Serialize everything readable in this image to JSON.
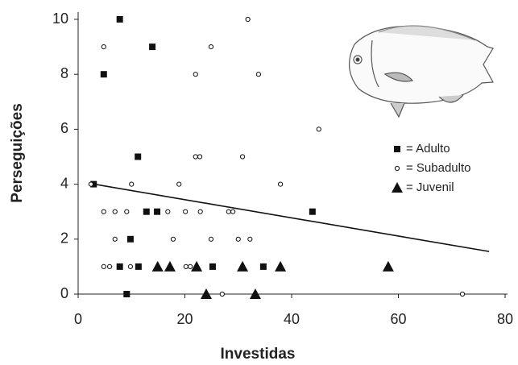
{
  "chart_data": {
    "type": "scatter",
    "xlabel": "Investidas",
    "ylabel": "Perseguições",
    "xlim": [
      0,
      80
    ],
    "xticks": [
      0,
      20,
      40,
      60,
      80
    ],
    "ylim": [
      0,
      10
    ],
    "yticks": [
      0,
      2,
      4,
      6,
      8,
      10
    ],
    "series": [
      {
        "name": "= Adulto",
        "marker": "square",
        "color": "#111111",
        "x": [
          7.8,
          13.9,
          4.8,
          11.2,
          2.9,
          12.8,
          14.8,
          43.9,
          9.8,
          7.8,
          11.3,
          25.2,
          34.7,
          9.1
        ],
        "values": [
          10,
          9,
          8,
          5,
          4,
          3,
          3,
          3,
          2,
          1,
          1,
          1,
          1,
          0
        ]
      },
      {
        "name": "= Subadulto",
        "marker": "circle",
        "color": "#111111",
        "x": [
          4.8,
          24.9,
          31.8,
          22,
          33.8,
          45.1,
          22,
          22.8,
          30.8,
          2.4,
          10,
          18.9,
          37.9,
          4.8,
          6.9,
          9.1,
          16.8,
          20.1,
          22.9,
          28.2,
          29,
          6.9,
          17.8,
          24.9,
          30,
          32.2,
          4.8,
          5.9,
          9.8,
          20.2,
          21,
          27,
          72
        ],
        "values": [
          9,
          9,
          10,
          8,
          8,
          6,
          5,
          5,
          5,
          4,
          4,
          4,
          4,
          3,
          3,
          3,
          3,
          3,
          3,
          3,
          3,
          2,
          2,
          2,
          2,
          2,
          1,
          1,
          1,
          1,
          1,
          0,
          0
        ]
      },
      {
        "name": "= Juvenil",
        "marker": "triangle",
        "color": "#111111",
        "x": [
          14.9,
          17.2,
          22.2,
          30.8,
          37.9,
          58.1,
          24,
          33.2
        ],
        "values": [
          1,
          1,
          1,
          1,
          1,
          1,
          0,
          0
        ]
      }
    ],
    "trend_line": {
      "x": [
        3,
        77
      ],
      "values": [
        4.0,
        1.55
      ],
      "color": "#111111"
    }
  }
}
